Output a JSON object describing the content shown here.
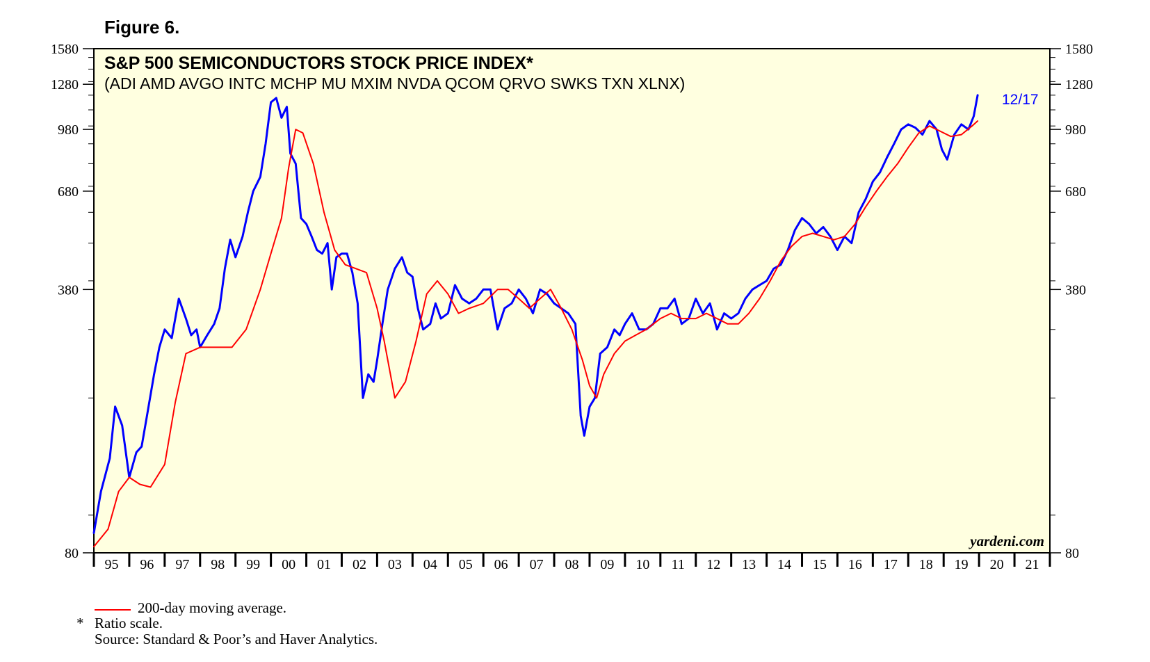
{
  "figure": {
    "label": "Figure 6."
  },
  "colors": {
    "plot_bg": "#ffffe0",
    "price_line": "#0000ff",
    "ma_line": "#ff0000",
    "axis": "#000000"
  },
  "chart_data": {
    "type": "line",
    "scale": "log",
    "title": "S&P 500 SEMICONDUCTORS STOCK PRICE INDEX*",
    "subtitle": "(ADI AMD AVGO INTC MCHP MU MXIM NVDA QCOM QRVO SWKS TXN XLNX)",
    "ylim": [
      80,
      1580
    ],
    "xlim": [
      1995.0,
      2022.0
    ],
    "y_ticks": [
      "1580",
      "1280",
      "980",
      "680",
      "380",
      "80"
    ],
    "y_tick_values": [
      1580,
      1280,
      980,
      680,
      380,
      80
    ],
    "x_tick_labels": [
      "95",
      "96",
      "97",
      "98",
      "99",
      "00",
      "01",
      "02",
      "03",
      "04",
      "05",
      "06",
      "07",
      "08",
      "09",
      "10",
      "11",
      "12",
      "13",
      "14",
      "15",
      "16",
      "17",
      "18",
      "19",
      "20",
      "21"
    ],
    "annotation": "12/17",
    "watermark": "yardeni.com",
    "series": [
      {
        "name": "S&P 500 Semiconductors stock price index",
        "color": "#0000ff",
        "x": [
          1995.0,
          1995.2,
          1995.45,
          1995.6,
          1995.8,
          1996.0,
          1996.2,
          1996.35,
          1996.5,
          1996.7,
          1996.85,
          1997.0,
          1997.2,
          1997.4,
          1997.6,
          1997.75,
          1997.9,
          1998.0,
          1998.2,
          1998.4,
          1998.55,
          1998.7,
          1998.85,
          1999.0,
          1999.2,
          1999.35,
          1999.5,
          1999.7,
          1999.85,
          2000.0,
          2000.15,
          2000.3,
          2000.45,
          2000.55,
          2000.7,
          2000.85,
          2001.0,
          2001.15,
          2001.3,
          2001.45,
          2001.6,
          2001.72,
          2001.85,
          2002.0,
          2002.15,
          2002.3,
          2002.45,
          2002.6,
          2002.75,
          2002.9,
          2003.0,
          2003.15,
          2003.3,
          2003.5,
          2003.7,
          2003.85,
          2004.0,
          2004.15,
          2004.3,
          2004.5,
          2004.65,
          2004.8,
          2005.0,
          2005.2,
          2005.4,
          2005.6,
          2005.8,
          2006.0,
          2006.2,
          2006.4,
          2006.6,
          2006.8,
          2007.0,
          2007.2,
          2007.4,
          2007.6,
          2007.8,
          2008.0,
          2008.2,
          2008.4,
          2008.6,
          2008.75,
          2008.85,
          2009.0,
          2009.15,
          2009.3,
          2009.5,
          2009.7,
          2009.85,
          2010.0,
          2010.2,
          2010.4,
          2010.6,
          2010.8,
          2011.0,
          2011.2,
          2011.4,
          2011.6,
          2011.8,
          2012.0,
          2012.2,
          2012.4,
          2012.6,
          2012.8,
          2013.0,
          2013.2,
          2013.4,
          2013.6,
          2013.8,
          2014.0,
          2014.2,
          2014.4,
          2014.6,
          2014.8,
          2015.0,
          2015.2,
          2015.4,
          2015.6,
          2015.8,
          2016.0,
          2016.2,
          2016.4,
          2016.6,
          2016.8,
          2017.0,
          2017.2,
          2017.4,
          2017.6,
          2017.8,
          2018.0,
          2018.2,
          2018.4,
          2018.6,
          2018.8,
          2018.95,
          2019.1,
          2019.3,
          2019.5,
          2019.7,
          2019.85,
          2019.96
        ],
        "values": [
          90,
          115,
          140,
          190,
          170,
          125,
          145,
          150,
          180,
          230,
          270,
          300,
          285,
          360,
          320,
          290,
          300,
          270,
          290,
          310,
          340,
          430,
          510,
          460,
          520,
          600,
          680,
          740,
          900,
          1150,
          1180,
          1050,
          1120,
          850,
          800,
          580,
          560,
          520,
          480,
          470,
          500,
          380,
          460,
          470,
          470,
          420,
          350,
          200,
          230,
          220,
          250,
          310,
          380,
          430,
          460,
          420,
          410,
          340,
          300,
          310,
          350,
          320,
          330,
          390,
          360,
          350,
          360,
          380,
          380,
          300,
          340,
          350,
          380,
          360,
          330,
          380,
          370,
          350,
          340,
          330,
          310,
          180,
          160,
          190,
          200,
          260,
          270,
          300,
          290,
          310,
          330,
          300,
          300,
          310,
          340,
          340,
          360,
          310,
          320,
          360,
          330,
          350,
          300,
          330,
          320,
          330,
          360,
          380,
          390,
          400,
          430,
          440,
          480,
          540,
          580,
          560,
          530,
          550,
          520,
          480,
          520,
          500,
          600,
          650,
          720,
          760,
          830,
          900,
          980,
          1010,
          990,
          950,
          1030,
          980,
          870,
          820,
          950,
          1010,
          980,
          1060,
          1200
        ]
      },
      {
        "name": "200-day moving average",
        "color": "#ff0000",
        "x": [
          1995.0,
          1995.4,
          1995.7,
          1996.0,
          1996.3,
          1996.6,
          1997.0,
          1997.3,
          1997.6,
          1998.0,
          1998.3,
          1998.6,
          1998.9,
          1999.3,
          1999.7,
          2000.0,
          2000.3,
          2000.5,
          2000.7,
          2000.9,
          2001.2,
          2001.5,
          2001.8,
          2002.1,
          2002.4,
          2002.7,
          2003.0,
          2003.2,
          2003.5,
          2003.8,
          2004.1,
          2004.4,
          2004.7,
          2005.0,
          2005.3,
          2005.6,
          2006.0,
          2006.4,
          2006.7,
          2007.0,
          2007.3,
          2007.6,
          2007.9,
          2008.2,
          2008.5,
          2008.8,
          2009.0,
          2009.2,
          2009.4,
          2009.7,
          2010.0,
          2010.3,
          2010.6,
          2011.0,
          2011.3,
          2011.6,
          2012.0,
          2012.3,
          2012.6,
          2012.9,
          2013.2,
          2013.5,
          2013.8,
          2014.1,
          2014.4,
          2014.7,
          2015.0,
          2015.3,
          2015.6,
          2015.9,
          2016.2,
          2016.5,
          2016.8,
          2017.1,
          2017.4,
          2017.7,
          2018.0,
          2018.3,
          2018.6,
          2018.9,
          2019.2,
          2019.5,
          2019.8,
          2019.96
        ],
        "values": [
          83,
          92,
          115,
          125,
          120,
          118,
          135,
          195,
          260,
          270,
          270,
          270,
          270,
          300,
          380,
          470,
          580,
          780,
          980,
          960,
          800,
          600,
          480,
          440,
          430,
          420,
          340,
          280,
          200,
          220,
          280,
          370,
          400,
          370,
          330,
          340,
          350,
          380,
          380,
          360,
          340,
          360,
          380,
          340,
          300,
          250,
          215,
          200,
          230,
          260,
          280,
          290,
          300,
          320,
          330,
          320,
          320,
          330,
          320,
          310,
          310,
          330,
          360,
          400,
          450,
          490,
          520,
          530,
          520,
          510,
          520,
          560,
          620,
          680,
          740,
          800,
          880,
          960,
          1000,
          970,
          940,
          950,
          1000,
          1030
        ]
      }
    ]
  },
  "notes": {
    "legend_label": "200-day moving average.",
    "ratio_star": "*",
    "ratio_note": "Ratio scale.",
    "source": "Source: Standard & Poor’s and Haver Analytics."
  }
}
